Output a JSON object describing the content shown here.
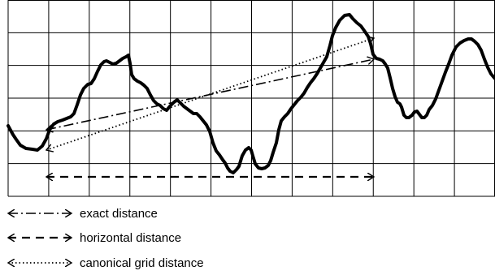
{
  "figure": {
    "grid": {
      "columns": 12,
      "rows": 6
    },
    "curve_label": "",
    "legend": [
      {
        "key": "exact",
        "label": "exact distance",
        "line_style": "dash-dot"
      },
      {
        "key": "horizontal",
        "label": "horizontal distance",
        "line_style": "dashed"
      },
      {
        "key": "canonical",
        "label": "canonical grid distance",
        "line_style": "dotted"
      }
    ],
    "colors": {
      "stroke": "#000000",
      "background": "#ffffff"
    }
  }
}
